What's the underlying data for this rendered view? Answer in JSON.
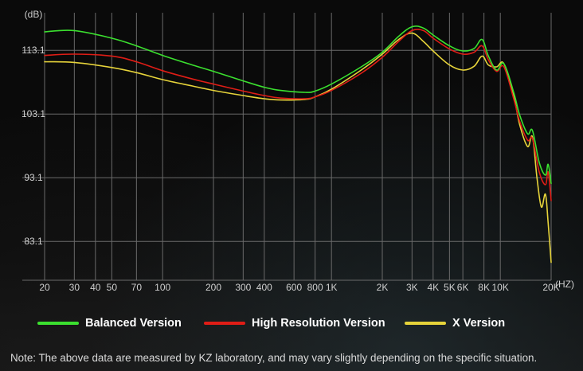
{
  "chart_data": {
    "type": "line",
    "y_unit": "(dB)",
    "x_unit": "(HZ)",
    "y_ticks": [
      83.1,
      93.1,
      103.1,
      113.1
    ],
    "x_ticks": [
      {
        "f": 20,
        "label": "20"
      },
      {
        "f": 30,
        "label": "30"
      },
      {
        "f": 40,
        "label": "40"
      },
      {
        "f": 50,
        "label": "50"
      },
      {
        "f": 70,
        "label": "70"
      },
      {
        "f": 100,
        "label": "100"
      },
      {
        "f": 200,
        "label": "200"
      },
      {
        "f": 300,
        "label": "300"
      },
      {
        "f": 400,
        "label": "400"
      },
      {
        "f": 600,
        "label": "600"
      },
      {
        "f": 800,
        "label": "800"
      },
      {
        "f": 1000,
        "label": "1K"
      },
      {
        "f": 2000,
        "label": "2K"
      },
      {
        "f": 3000,
        "label": "3K"
      },
      {
        "f": 4000,
        "label": "4K"
      },
      {
        "f": 5000,
        "label": "5K"
      },
      {
        "f": 6000,
        "label": "6K"
      },
      {
        "f": 8000,
        "label": "8K"
      },
      {
        "f": 10000,
        "label": "10K"
      },
      {
        "f": 20000,
        "label": "20K"
      }
    ],
    "x_scale": "log",
    "xlim": [
      20,
      20000
    ],
    "ylim": [
      77,
      118
    ],
    "grid": true,
    "series": [
      {
        "name": "Balanced Version",
        "color": "#3be02f",
        "points": [
          [
            20,
            116.0
          ],
          [
            30,
            116.2
          ],
          [
            50,
            115.0
          ],
          [
            70,
            113.8
          ],
          [
            100,
            112.3
          ],
          [
            150,
            110.8
          ],
          [
            200,
            109.8
          ],
          [
            300,
            108.3
          ],
          [
            400,
            107.3
          ],
          [
            500,
            106.8
          ],
          [
            700,
            106.5
          ],
          [
            800,
            106.7
          ],
          [
            1000,
            107.8
          ],
          [
            1500,
            110.5
          ],
          [
            2000,
            112.8
          ],
          [
            2500,
            115.3
          ],
          [
            3000,
            116.8
          ],
          [
            3500,
            116.6
          ],
          [
            4000,
            115.5
          ],
          [
            5000,
            113.8
          ],
          [
            6000,
            113.0
          ],
          [
            7000,
            113.4
          ],
          [
            7800,
            114.8
          ],
          [
            8500,
            112.2
          ],
          [
            9500,
            110.0
          ],
          [
            10500,
            111.0
          ],
          [
            12000,
            106.5
          ],
          [
            13000,
            103.0
          ],
          [
            14500,
            100.0
          ],
          [
            15500,
            100.5
          ],
          [
            17000,
            95.5
          ],
          [
            18500,
            93.5
          ],
          [
            19200,
            95.2
          ],
          [
            20000,
            92.2
          ]
        ]
      },
      {
        "name": "High Resolution Version",
        "color": "#e01d16",
        "points": [
          [
            20,
            112.3
          ],
          [
            30,
            112.5
          ],
          [
            50,
            112.2
          ],
          [
            70,
            111.3
          ],
          [
            100,
            109.9
          ],
          [
            150,
            108.6
          ],
          [
            200,
            107.8
          ],
          [
            300,
            106.7
          ],
          [
            400,
            106.0
          ],
          [
            500,
            105.6
          ],
          [
            700,
            105.5
          ],
          [
            800,
            105.8
          ],
          [
            1000,
            106.8
          ],
          [
            1500,
            109.5
          ],
          [
            2000,
            112.0
          ],
          [
            2500,
            114.5
          ],
          [
            3000,
            116.2
          ],
          [
            3500,
            116.2
          ],
          [
            4000,
            115.0
          ],
          [
            5000,
            113.3
          ],
          [
            6000,
            112.5
          ],
          [
            7000,
            112.8
          ],
          [
            7800,
            113.8
          ],
          [
            8500,
            111.6
          ],
          [
            9500,
            109.8
          ],
          [
            10500,
            110.5
          ],
          [
            12000,
            105.5
          ],
          [
            13000,
            102.0
          ],
          [
            14500,
            99.0
          ],
          [
            15500,
            99.2
          ],
          [
            17000,
            94.0
          ],
          [
            18500,
            92.0
          ],
          [
            19200,
            94.0
          ],
          [
            20000,
            89.5
          ]
        ]
      },
      {
        "name": "X Version",
        "color": "#e6d33a",
        "points": [
          [
            20,
            111.3
          ],
          [
            30,
            111.2
          ],
          [
            50,
            110.4
          ],
          [
            70,
            109.6
          ],
          [
            100,
            108.5
          ],
          [
            150,
            107.5
          ],
          [
            200,
            106.8
          ],
          [
            300,
            106.0
          ],
          [
            400,
            105.5
          ],
          [
            500,
            105.3
          ],
          [
            700,
            105.4
          ],
          [
            800,
            105.8
          ],
          [
            1000,
            107.0
          ],
          [
            1500,
            110.0
          ],
          [
            2000,
            112.5
          ],
          [
            2500,
            114.8
          ],
          [
            3000,
            115.8
          ],
          [
            3500,
            114.5
          ],
          [
            4000,
            113.0
          ],
          [
            5000,
            110.8
          ],
          [
            6000,
            110.0
          ],
          [
            7000,
            110.6
          ],
          [
            7800,
            112.2
          ],
          [
            8500,
            110.8
          ],
          [
            9500,
            110.5
          ],
          [
            10500,
            111.0
          ],
          [
            12000,
            106.0
          ],
          [
            13000,
            101.5
          ],
          [
            14500,
            98.0
          ],
          [
            15500,
            99.5
          ],
          [
            16500,
            93.0
          ],
          [
            17500,
            88.5
          ],
          [
            18500,
            90.5
          ],
          [
            19200,
            86.0
          ],
          [
            20000,
            79.8
          ]
        ]
      }
    ]
  },
  "legend": {
    "items": [
      {
        "label": "Balanced Version",
        "color": "#3be02f"
      },
      {
        "label": "High Resolution Version",
        "color": "#e01d16"
      },
      {
        "label": "X Version",
        "color": "#e6d33a"
      }
    ]
  },
  "note": "Note: The above data are measured by KZ laboratory, and may vary slightly depending on the specific situation."
}
